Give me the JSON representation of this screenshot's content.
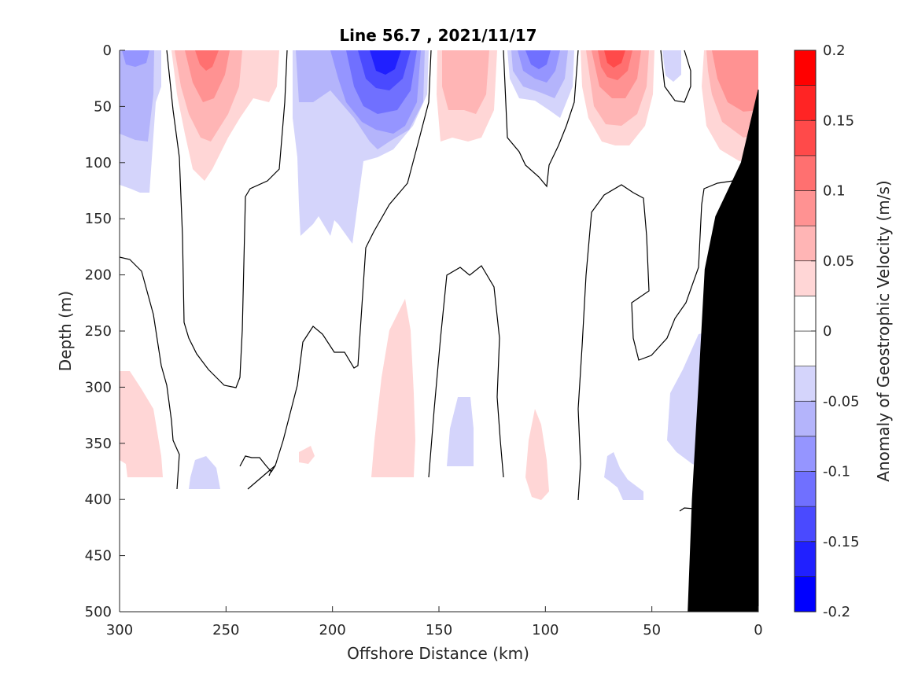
{
  "chart_data": {
    "type": "heatmap",
    "title": "Line 56.7 , 2021/11/17",
    "xlabel": "Offshore Distance (km)",
    "ylabel": "Depth (m)",
    "xlim": [
      300,
      0
    ],
    "ylim": [
      0,
      500
    ],
    "x_reversed": true,
    "y_reversed": true,
    "x_ticks": [
      300,
      250,
      200,
      150,
      100,
      50,
      0
    ],
    "y_ticks": [
      0,
      50,
      100,
      150,
      200,
      250,
      300,
      350,
      400,
      450,
      500
    ],
    "grid": false,
    "colorbar": {
      "label": "Anomaly of Geostrophic Velocity (m/s)",
      "range": [
        -0.2,
        0.2
      ],
      "tick_values": [
        0.2,
        0.15,
        0.1,
        0.05,
        0,
        -0.05,
        -0.1,
        -0.15,
        -0.2
      ],
      "tick_labels": [
        "0.2",
        "0.15",
        "0.1",
        "0.05",
        "0",
        "-0.05",
        "-0.1",
        "-0.15",
        "-0.2"
      ],
      "levels": [
        -0.2,
        -0.175,
        -0.15,
        -0.125,
        -0.1,
        -0.075,
        -0.05,
        -0.025,
        0,
        0.025,
        0.05,
        0.075,
        0.1,
        0.125,
        0.15,
        0.175,
        0.2
      ],
      "colors": [
        "#0000ff",
        "#2020ff",
        "#4a4aff",
        "#7070ff",
        "#9595ff",
        "#b4b4fb",
        "#d4d4fb",
        "#ffffff",
        "#ffffff",
        "#ffd6d6",
        "#ffb5b5",
        "#ff9292",
        "#ff7070",
        "#ff4a4a",
        "#ff2424",
        "#ff0000"
      ]
    },
    "anomaly_cores": [
      {
        "x": 290,
        "depth": 10,
        "value": -0.06
      },
      {
        "x": 260,
        "depth": 10,
        "value": 0.1
      },
      {
        "x": 232,
        "depth": 5,
        "value": 0.03
      },
      {
        "x": 210,
        "depth": 20,
        "value": -0.05
      },
      {
        "x": 172,
        "depth": 8,
        "value": -0.15
      },
      {
        "x": 143,
        "depth": 10,
        "value": 0.06
      },
      {
        "x": 105,
        "depth": 8,
        "value": -0.1
      },
      {
        "x": 70,
        "depth": 10,
        "value": 0.12
      },
      {
        "x": 40,
        "depth": 15,
        "value": -0.04
      },
      {
        "x": 15,
        "depth": 30,
        "value": 0.08
      },
      {
        "x": 290,
        "depth": 330,
        "value": 0.03
      },
      {
        "x": 133,
        "depth": 340,
        "value": -0.03
      },
      {
        "x": 165,
        "depth": 300,
        "value": 0.03
      },
      {
        "x": 100,
        "depth": 350,
        "value": 0.03
      },
      {
        "x": 30,
        "depth": 320,
        "value": -0.03
      }
    ],
    "bottom_topography": [
      {
        "x": 0,
        "depth": 35
      },
      {
        "x": 8,
        "depth": 100
      },
      {
        "x": 20,
        "depth": 148
      },
      {
        "x": 25,
        "depth": 195
      },
      {
        "x": 28,
        "depth": 300
      },
      {
        "x": 31,
        "depth": 400
      },
      {
        "x": 33,
        "depth": 500
      }
    ]
  }
}
